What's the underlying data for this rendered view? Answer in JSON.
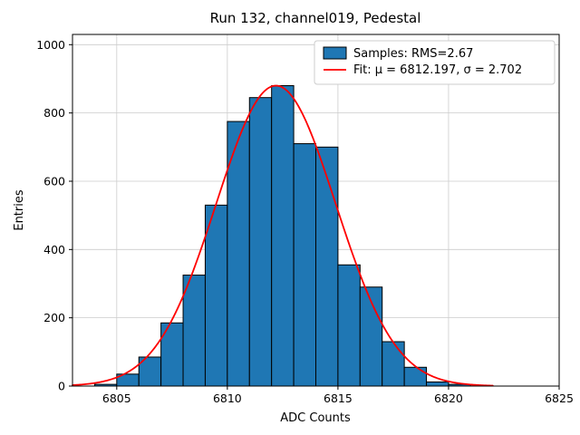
{
  "chart_data": {
    "type": "bar",
    "subtype": "histogram",
    "title": "Run 132, channel019, Pedestal",
    "xlabel": "ADC Counts",
    "ylabel": "Entries",
    "xlim": [
      6803,
      6825
    ],
    "ylim": [
      0,
      1030
    ],
    "xticks": [
      6805,
      6810,
      6815,
      6820,
      6825
    ],
    "yticks": [
      0,
      200,
      400,
      600,
      800,
      1000
    ],
    "grid": true,
    "bar_color": "#1f77b4",
    "bar_edge_color": "#000000",
    "fit_color": "#ff0000",
    "bin_width": 1,
    "bin_left_edges": [
      6804,
      6805,
      6806,
      6807,
      6808,
      6809,
      6810,
      6811,
      6812,
      6813,
      6814,
      6815,
      6816,
      6817,
      6818,
      6819,
      6820
    ],
    "counts": [
      5,
      35,
      85,
      185,
      325,
      530,
      775,
      845,
      880,
      710,
      700,
      355,
      290,
      130,
      55,
      12,
      5
    ],
    "fit": {
      "mu": 6812.197,
      "sigma": 2.702,
      "amplitude": 880
    },
    "fit_range": [
      6803,
      6822
    ],
    "legend": [
      {
        "label": "Samples: RMS=2.67",
        "marker": "patch"
      },
      {
        "label": "Fit: μ = 6812.197, σ = 2.702",
        "marker": "line"
      }
    ]
  }
}
